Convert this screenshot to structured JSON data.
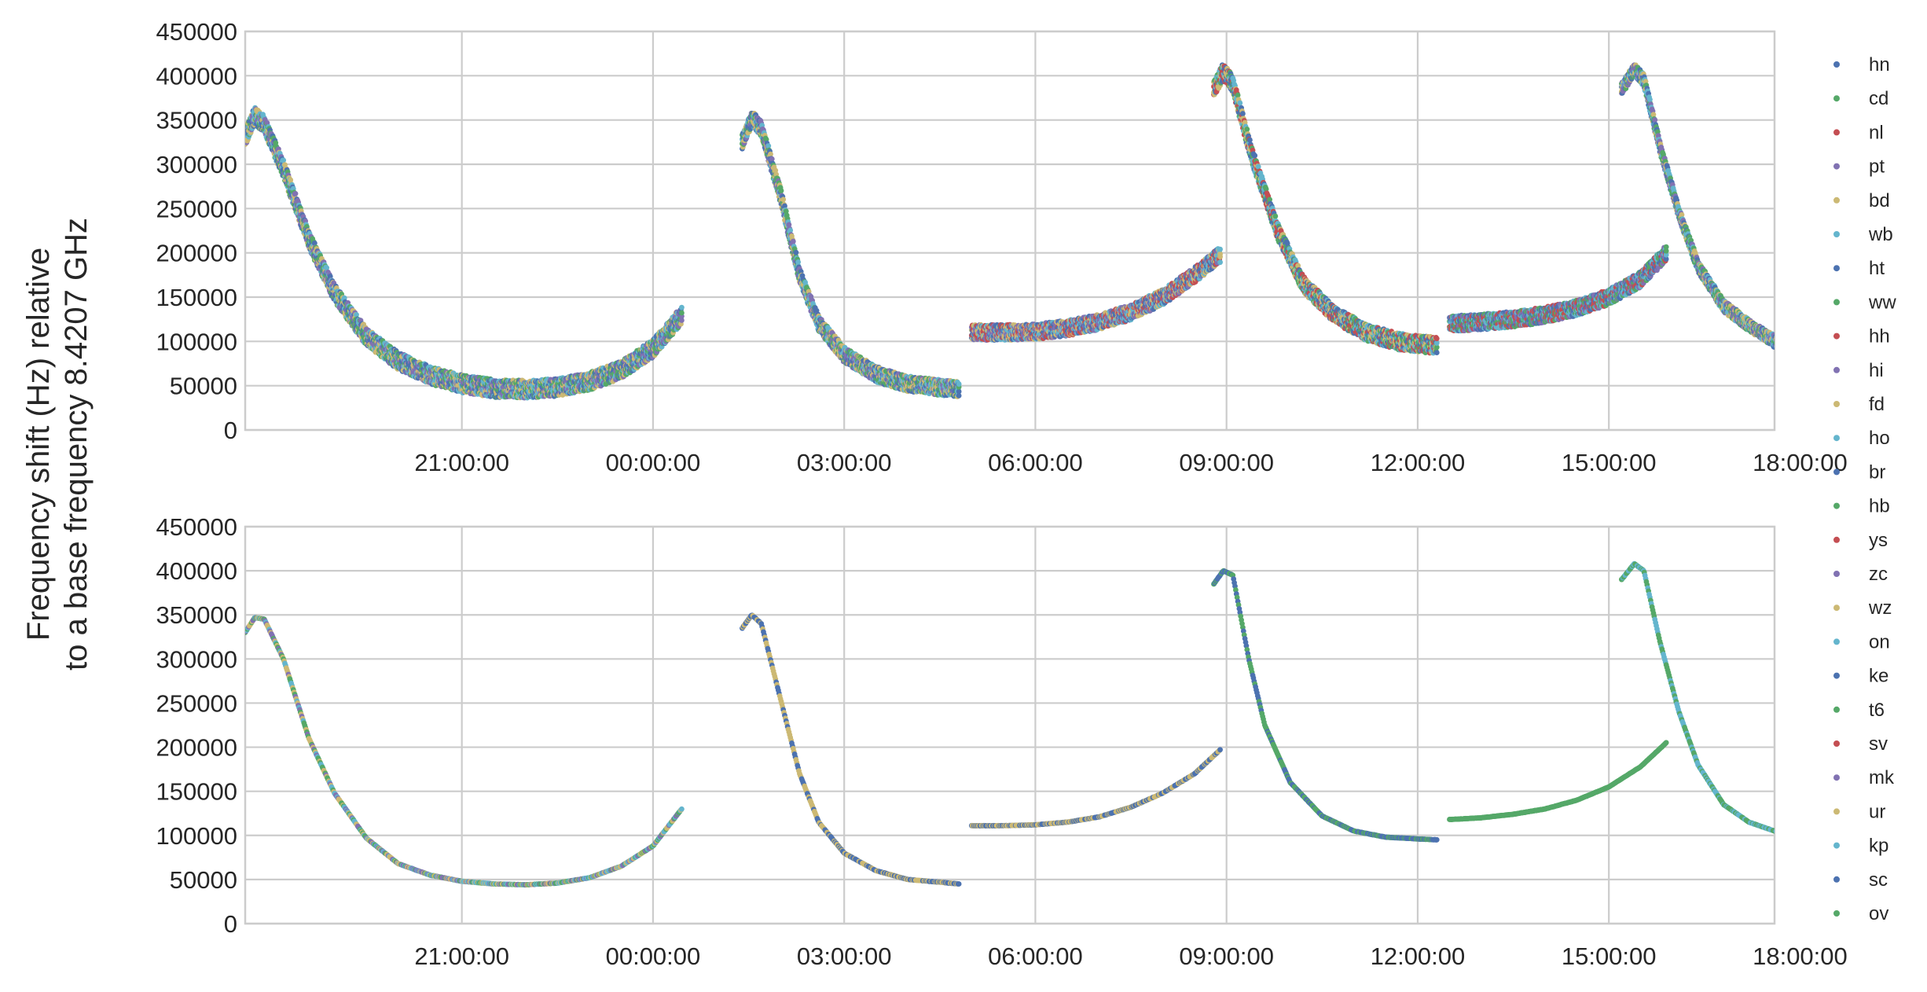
{
  "chart_data": {
    "type": "scatter",
    "ylabel_lines": [
      "Frequency shift (Hz) relative",
      "to a base frequency 8.4207 GHz"
    ],
    "x_unit": "hours",
    "xlim": [
      17.6,
      41.6
    ],
    "ylim": [
      0,
      450000
    ],
    "x_tick_values": [
      21,
      24,
      27,
      30,
      33,
      36,
      39,
      42
    ],
    "x_tick_labels": [
      "21:00:00",
      "00:00:00",
      "03:00:00",
      "06:00:00",
      "09:00:00",
      "12:00:00",
      "15:00:00",
      "18:00:00"
    ],
    "y_ticks": [
      0,
      50000,
      100000,
      150000,
      200000,
      250000,
      300000,
      350000,
      400000,
      450000
    ],
    "y_tick_labels": [
      "0",
      "50000",
      "100000",
      "150000",
      "200000",
      "250000",
      "300000",
      "350000",
      "400000",
      "450000"
    ],
    "grid": true,
    "legend_position": "right",
    "legend": [
      {
        "label": "hn",
        "color": "#4C72B0"
      },
      {
        "label": "cd",
        "color": "#55A868"
      },
      {
        "label": "nl",
        "color": "#C44E52"
      },
      {
        "label": "pt",
        "color": "#8172B2"
      },
      {
        "label": "bd",
        "color": "#CCB974"
      },
      {
        "label": "wb",
        "color": "#64B5CD"
      },
      {
        "label": "ht",
        "color": "#4C72B0"
      },
      {
        "label": "ww",
        "color": "#55A868"
      },
      {
        "label": "hh",
        "color": "#C44E52"
      },
      {
        "label": "hi",
        "color": "#8172B2"
      },
      {
        "label": "fd",
        "color": "#CCB974"
      },
      {
        "label": "ho",
        "color": "#64B5CD"
      },
      {
        "label": "br",
        "color": "#4C72B0"
      },
      {
        "label": "hb",
        "color": "#55A868"
      },
      {
        "label": "ys",
        "color": "#C44E52"
      },
      {
        "label": "zc",
        "color": "#8172B2"
      },
      {
        "label": "wz",
        "color": "#CCB974"
      },
      {
        "label": "on",
        "color": "#64B5CD"
      },
      {
        "label": "ke",
        "color": "#4C72B0"
      },
      {
        "label": "t6",
        "color": "#55A868"
      },
      {
        "label": "sv",
        "color": "#C44E52"
      },
      {
        "label": "mk",
        "color": "#8172B2"
      },
      {
        "label": "ur",
        "color": "#CCB974"
      },
      {
        "label": "kp",
        "color": "#64B5CD"
      },
      {
        "label": "sc",
        "color": "#4C72B0"
      },
      {
        "label": "ov",
        "color": "#55A868"
      }
    ],
    "panels": [
      {
        "name": "top",
        "segments": [
          {
            "colors": [
              "#55A868",
              "#CCB974",
              "#4C72B0",
              "#8172B2",
              "#64B5CD"
            ],
            "points": [
              [
                17.6,
                330000
              ],
              [
                17.75,
                355000
              ],
              [
                17.9,
                345000
              ],
              [
                18.2,
                295000
              ],
              [
                18.6,
                215000
              ],
              [
                19.0,
                155000
              ],
              [
                19.5,
                105000
              ],
              [
                20.0,
                78000
              ],
              [
                20.5,
                62000
              ],
              [
                21.0,
                52000
              ],
              [
                21.5,
                47000
              ],
              [
                22.0,
                46000
              ],
              [
                22.5,
                48000
              ],
              [
                23.0,
                55000
              ],
              [
                23.5,
                68000
              ],
              [
                24.0,
                92000
              ],
              [
                24.45,
                130000
              ]
            ],
            "spread": 16000
          },
          {
            "colors": [
              "#55A868",
              "#CCB974",
              "#64B5CD",
              "#4C72B0",
              "#8172B2"
            ],
            "points": [
              [
                25.4,
                325000
              ],
              [
                25.55,
                352000
              ],
              [
                25.7,
                340000
              ],
              [
                26.0,
                265000
              ],
              [
                26.3,
                175000
              ],
              [
                26.6,
                120000
              ],
              [
                27.0,
                85000
              ],
              [
                27.5,
                63000
              ],
              [
                28.0,
                52000
              ],
              [
                28.5,
                48000
              ],
              [
                28.8,
                46000
              ]
            ],
            "spread": 14000
          },
          {
            "colors": [
              "#64B5CD",
              "#4C72B0",
              "#CCB974",
              "#C44E52",
              "#8172B2"
            ],
            "points": [
              [
                29.0,
                110000
              ],
              [
                29.5,
                110000
              ],
              [
                30.0,
                111000
              ],
              [
                30.5,
                115000
              ],
              [
                31.0,
                122000
              ],
              [
                31.5,
                133000
              ],
              [
                32.0,
                150000
              ],
              [
                32.5,
                175000
              ],
              [
                32.9,
                198000
              ]
            ],
            "spread": 14000
          },
          {
            "colors": [
              "#4C72B0",
              "#64B5CD",
              "#55A868",
              "#CCB974",
              "#C44E52"
            ],
            "points": [
              [
                32.8,
                385000
              ],
              [
                32.95,
                405000
              ],
              [
                33.1,
                390000
              ],
              [
                33.4,
                310000
              ],
              [
                33.8,
                225000
              ],
              [
                34.2,
                165000
              ],
              [
                34.7,
                130000
              ],
              [
                35.2,
                110000
              ],
              [
                35.7,
                100000
              ],
              [
                36.0,
                97000
              ],
              [
                36.3,
                96000
              ]
            ],
            "spread": 15000
          },
          {
            "colors": [
              "#4C72B0",
              "#55A868",
              "#64B5CD",
              "#8172B2",
              "#C44E52"
            ],
            "points": [
              [
                36.5,
                120000
              ],
              [
                37.0,
                122000
              ],
              [
                37.5,
                125000
              ],
              [
                38.0,
                130000
              ],
              [
                38.5,
                138000
              ],
              [
                39.0,
                150000
              ],
              [
                39.5,
                170000
              ],
              [
                39.9,
                200000
              ]
            ],
            "spread": 14000
          },
          {
            "colors": [
              "#55A868",
              "#8172B2",
              "#4C72B0",
              "#64B5CD",
              "#CCB974"
            ],
            "points": [
              [
                39.2,
                385000
              ],
              [
                39.4,
                407000
              ],
              [
                39.55,
                395000
              ],
              [
                39.8,
                320000
              ],
              [
                40.1,
                245000
              ],
              [
                40.4,
                185000
              ],
              [
                40.8,
                140000
              ],
              [
                41.2,
                118000
              ],
              [
                41.6,
                100000
              ],
              [
                42.0,
                95000
              ],
              [
                42.3,
                93000
              ]
            ],
            "spread": 11000
          }
        ]
      },
      {
        "name": "bottom",
        "segments": [
          {
            "colors": [
              "#55A868",
              "#CCB974",
              "#8172B2",
              "#64B5CD"
            ],
            "points": [
              [
                17.6,
                330000
              ],
              [
                17.75,
                347000
              ],
              [
                17.9,
                345000
              ],
              [
                18.2,
                300000
              ],
              [
                18.6,
                210000
              ],
              [
                19.0,
                148000
              ],
              [
                19.5,
                97000
              ],
              [
                20.0,
                68000
              ],
              [
                20.5,
                55000
              ],
              [
                21.0,
                48000
              ],
              [
                21.5,
                45000
              ],
              [
                22.0,
                44000
              ],
              [
                22.5,
                46000
              ],
              [
                23.0,
                52000
              ],
              [
                23.5,
                65000
              ],
              [
                24.0,
                88000
              ],
              [
                24.45,
                130000
              ]
            ],
            "spread": 1500
          },
          {
            "colors": [
              "#CCB974",
              "#4C72B0"
            ],
            "points": [
              [
                25.4,
                335000
              ],
              [
                25.55,
                350000
              ],
              [
                25.7,
                340000
              ],
              [
                26.0,
                255000
              ],
              [
                26.3,
                170000
              ],
              [
                26.6,
                115000
              ],
              [
                27.0,
                80000
              ],
              [
                27.5,
                60000
              ],
              [
                28.0,
                50000
              ],
              [
                28.5,
                47000
              ],
              [
                28.8,
                45000
              ]
            ],
            "spread": 1500
          },
          {
            "colors": [
              "#4C72B0",
              "#CCB974"
            ],
            "points": [
              [
                29.0,
                111000
              ],
              [
                29.5,
                111000
              ],
              [
                30.0,
                112000
              ],
              [
                30.5,
                115000
              ],
              [
                31.0,
                121000
              ],
              [
                31.5,
                132000
              ],
              [
                32.0,
                148000
              ],
              [
                32.5,
                170000
              ],
              [
                32.9,
                197000
              ]
            ],
            "spread": 1200
          },
          {
            "colors": [
              "#4C72B0",
              "#55A868"
            ],
            "points": [
              [
                32.8,
                385000
              ],
              [
                32.95,
                400000
              ],
              [
                33.1,
                395000
              ],
              [
                33.35,
                300000
              ],
              [
                33.6,
                225000
              ],
              [
                34.0,
                160000
              ],
              [
                34.5,
                122000
              ],
              [
                35.0,
                105000
              ],
              [
                35.5,
                98000
              ],
              [
                36.0,
                96000
              ],
              [
                36.3,
                95000
              ]
            ],
            "spread": 1500
          },
          {
            "colors": [
              "#55A868"
            ],
            "points": [
              [
                36.5,
                118000
              ],
              [
                37.0,
                120000
              ],
              [
                37.5,
                124000
              ],
              [
                38.0,
                130000
              ],
              [
                38.5,
                140000
              ],
              [
                39.0,
                155000
              ],
              [
                39.5,
                178000
              ],
              [
                39.9,
                205000
              ]
            ],
            "spread": 1200
          },
          {
            "colors": [
              "#55A868",
              "#64B5CD"
            ],
            "points": [
              [
                39.2,
                390000
              ],
              [
                39.4,
                408000
              ],
              [
                39.55,
                400000
              ],
              [
                39.8,
                320000
              ],
              [
                40.1,
                240000
              ],
              [
                40.4,
                180000
              ],
              [
                40.8,
                135000
              ],
              [
                41.2,
                115000
              ],
              [
                41.6,
                105000
              ],
              [
                42.0,
                102000
              ],
              [
                42.3,
                101000
              ]
            ],
            "spread": 1200
          }
        ]
      }
    ]
  }
}
